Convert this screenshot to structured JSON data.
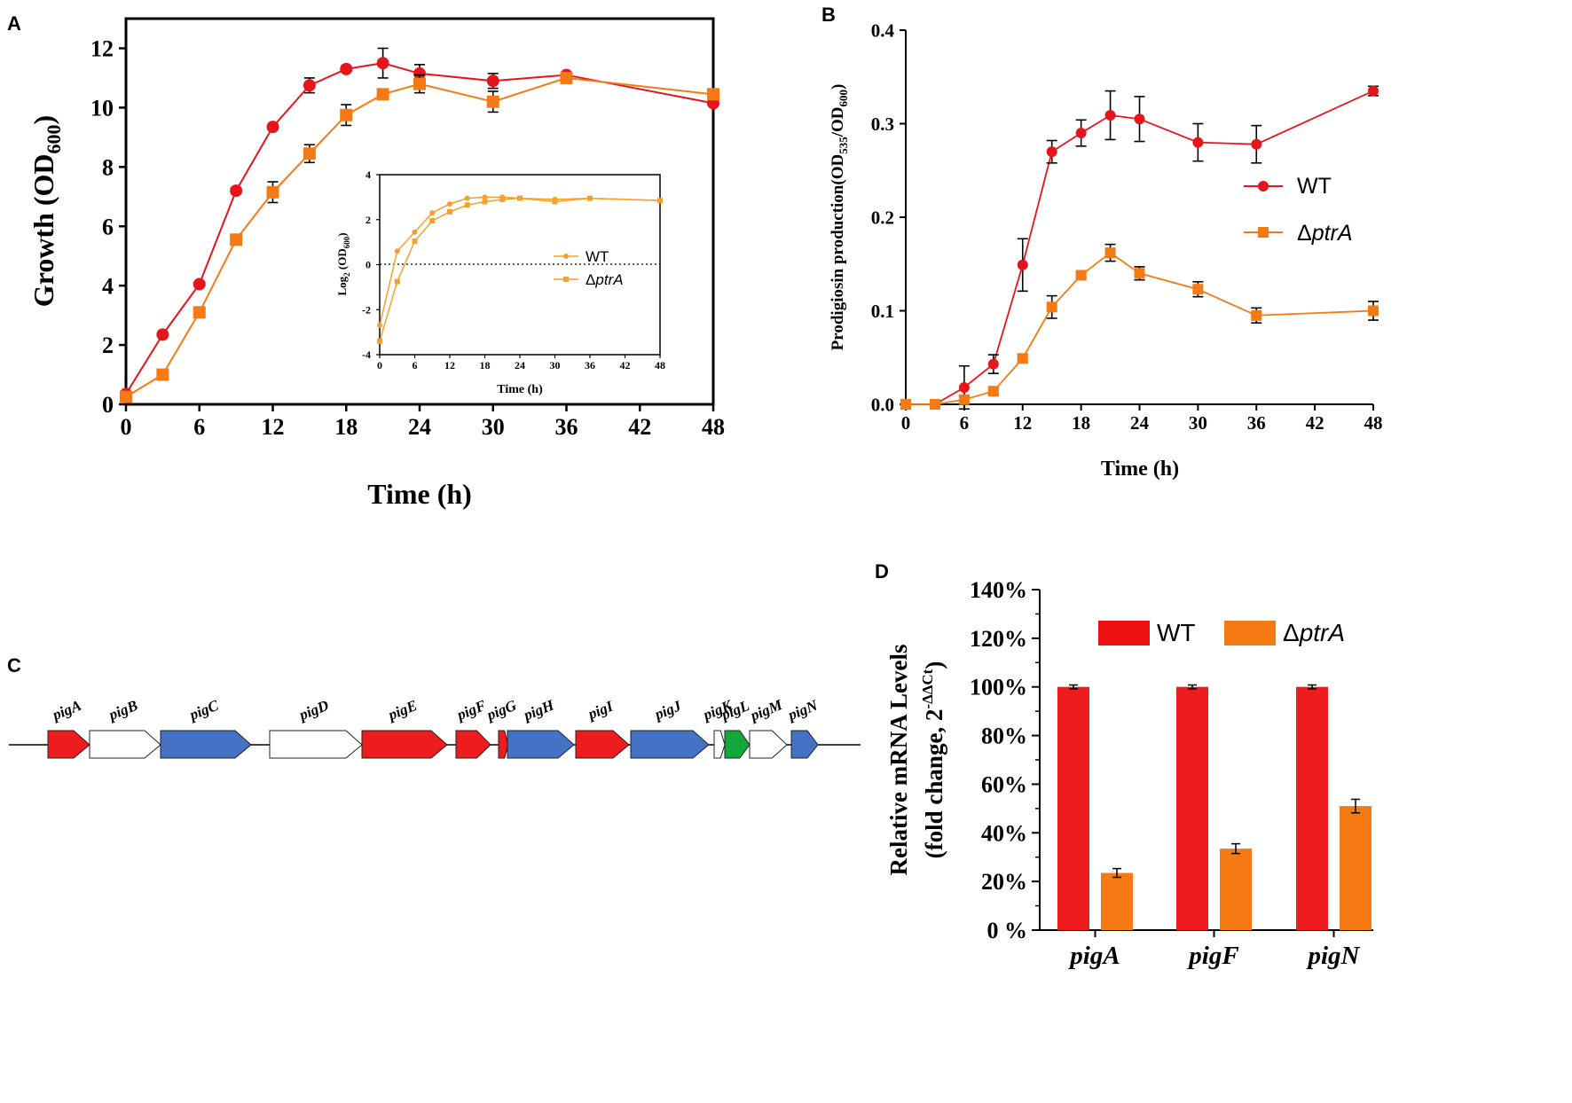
{
  "colors": {
    "wt": "#e8141c",
    "mut": "#f57a14",
    "inset": "#f5a02a",
    "gene_red": "#ee1c1c",
    "gene_blue": "#4472c4",
    "gene_green": "#14a83c",
    "gene_white": "#ffffff"
  },
  "chart_data": [
    {
      "id": "A",
      "type": "line",
      "panel_label": "A",
      "xlabel": "Time (h)",
      "ylabel_main": "Growth (OD",
      "ylabel_sub": "600",
      "ylabel_tail": ")",
      "x_ticks": [
        0,
        6,
        12,
        18,
        24,
        30,
        36,
        42,
        48
      ],
      "y_ticks": [
        0,
        2,
        4,
        6,
        8,
        10,
        12
      ],
      "xlim": [
        0,
        48
      ],
      "ylim": [
        0,
        13
      ],
      "series": [
        {
          "name": "WT",
          "marker": "circle",
          "x": [
            0,
            3,
            6,
            9,
            12,
            15,
            18,
            21,
            24,
            30,
            36,
            48
          ],
          "y": [
            0.35,
            2.35,
            4.05,
            7.2,
            9.35,
            10.75,
            11.3,
            11.5,
            11.15,
            10.9,
            11.1,
            10.15
          ],
          "err": [
            0.05,
            0.05,
            0.05,
            0.1,
            0.1,
            0.25,
            0.1,
            0.5,
            0.3,
            0.25,
            0.1,
            0.1
          ]
        },
        {
          "name": "ΔptrA",
          "marker": "square",
          "x": [
            0,
            3,
            6,
            9,
            12,
            15,
            18,
            21,
            24,
            30,
            36,
            48
          ],
          "y": [
            0.25,
            1.0,
            3.1,
            5.55,
            7.15,
            8.45,
            9.75,
            10.45,
            10.8,
            10.2,
            11.0,
            10.45
          ],
          "err": [
            0.05,
            0.05,
            0.1,
            0.1,
            0.35,
            0.3,
            0.35,
            0.1,
            0.3,
            0.35,
            0.1,
            0.1
          ]
        }
      ],
      "inset": {
        "xlabel": "Time (h)",
        "ylabel_main": "Log",
        "ylabel_sub": "2",
        "ylabel_tail": " (OD",
        "ylabel_sub2": "600",
        "ylabel_tail2": ")",
        "x_ticks": [
          0,
          6,
          12,
          18,
          24,
          30,
          36,
          42,
          48
        ],
        "y_ticks": [
          -4,
          -2,
          0,
          2,
          4
        ],
        "xlim": [
          0,
          48
        ],
        "ylim": [
          -4,
          4
        ],
        "series": [
          {
            "name": "WT",
            "marker": "circle",
            "x": [
              0,
              3,
              6,
              9,
              12,
              15,
              18,
              21,
              24,
              30,
              36,
              48
            ],
            "y": [
              -2.7,
              0.6,
              1.45,
              2.3,
              2.7,
              2.95,
              3.0,
              3.0,
              2.95,
              2.9,
              2.95,
              2.85
            ]
          },
          {
            "name": "ΔptrA",
            "marker": "square",
            "x": [
              0,
              3,
              6,
              9,
              12,
              15,
              18,
              21,
              24,
              30,
              36,
              48
            ],
            "y": [
              -3.4,
              -0.75,
              1.05,
              1.95,
              2.35,
              2.65,
              2.8,
              2.9,
              2.95,
              2.8,
              2.95,
              2.85
            ]
          }
        ]
      }
    },
    {
      "id": "B",
      "type": "line",
      "panel_label": "B",
      "xlabel": "Time (h)",
      "ylabel_main": "Prodigiosin  production(OD",
      "ylabel_sub": "535",
      "ylabel_mid": "/OD",
      "ylabel_sub2": "600",
      "ylabel_tail": ")",
      "x_ticks": [
        0,
        6,
        12,
        18,
        24,
        30,
        36,
        42,
        48
      ],
      "y_ticks": [
        "0.0",
        "0.1",
        "0.2",
        "0.3",
        "0.4"
      ],
      "xlim": [
        0,
        48
      ],
      "ylim": [
        0,
        0.4
      ],
      "series": [
        {
          "name": "WT",
          "marker": "circle",
          "x": [
            0,
            3,
            6,
            9,
            12,
            15,
            18,
            21,
            24,
            30,
            36,
            48
          ],
          "y": [
            0.0,
            0.0,
            0.018,
            0.043,
            0.149,
            0.27,
            0.29,
            0.309,
            0.305,
            0.28,
            0.278,
            0.335
          ],
          "err": [
            0,
            0,
            0.023,
            0.01,
            0.028,
            0.012,
            0.014,
            0.026,
            0.024,
            0.02,
            0.02,
            0.005
          ]
        },
        {
          "name": "ΔptrA",
          "marker": "square",
          "x": [
            0,
            3,
            6,
            9,
            12,
            15,
            18,
            21,
            24,
            30,
            36,
            48
          ],
          "y": [
            0.0,
            0.0,
            0.005,
            0.014,
            0.049,
            0.104,
            0.138,
            0.162,
            0.14,
            0.123,
            0.095,
            0.1
          ],
          "err": [
            0,
            0,
            0.004,
            0.003,
            0.004,
            0.012,
            0.003,
            0.009,
            0.007,
            0.008,
            0.008,
            0.01
          ]
        }
      ]
    },
    {
      "id": "D",
      "type": "bar",
      "panel_label": "D",
      "ylabel_line1": "Relative mRNA Levels",
      "ylabel_line2": "(fold change, 2",
      "ylabel_sup": "-ΔΔCt",
      "ylabel_tail": ")",
      "categories": [
        "pigA",
        "pigF",
        "pigN"
      ],
      "y_ticks": [
        "0 %",
        "20%",
        "40%",
        "60%",
        "80%",
        "100%",
        "120%",
        "140%"
      ],
      "ylim": [
        0,
        140
      ],
      "series": [
        {
          "name": "WT",
          "values": [
            100,
            100,
            100
          ],
          "err": [
            0.8,
            0.8,
            0.8
          ]
        },
        {
          "name": "ΔptrA",
          "values": [
            23.5,
            33.5,
            51
          ],
          "err": [
            1.8,
            2.0,
            2.8
          ]
        }
      ]
    }
  ],
  "panel_c": {
    "panel_label": "C",
    "genes": [
      {
        "name": "pigA",
        "color": "red"
      },
      {
        "name": "pigB",
        "color": "white"
      },
      {
        "name": "pigC",
        "color": "blue"
      },
      {
        "name": "pigD",
        "color": "white"
      },
      {
        "name": "pigE",
        "color": "red"
      },
      {
        "name": "pigF",
        "color": "red"
      },
      {
        "name": "pigG",
        "color": "red"
      },
      {
        "name": "pigH",
        "color": "blue"
      },
      {
        "name": "pigI",
        "color": "red"
      },
      {
        "name": "pigJ",
        "color": "blue"
      },
      {
        "name": "pigK",
        "color": "white"
      },
      {
        "name": "pigL",
        "color": "green"
      },
      {
        "name": "pigM",
        "color": "white"
      },
      {
        "name": "pigN",
        "color": "blue"
      }
    ]
  },
  "legend": {
    "wt": "WT",
    "mut_delta": "Δ",
    "mut_name": "ptrA"
  }
}
